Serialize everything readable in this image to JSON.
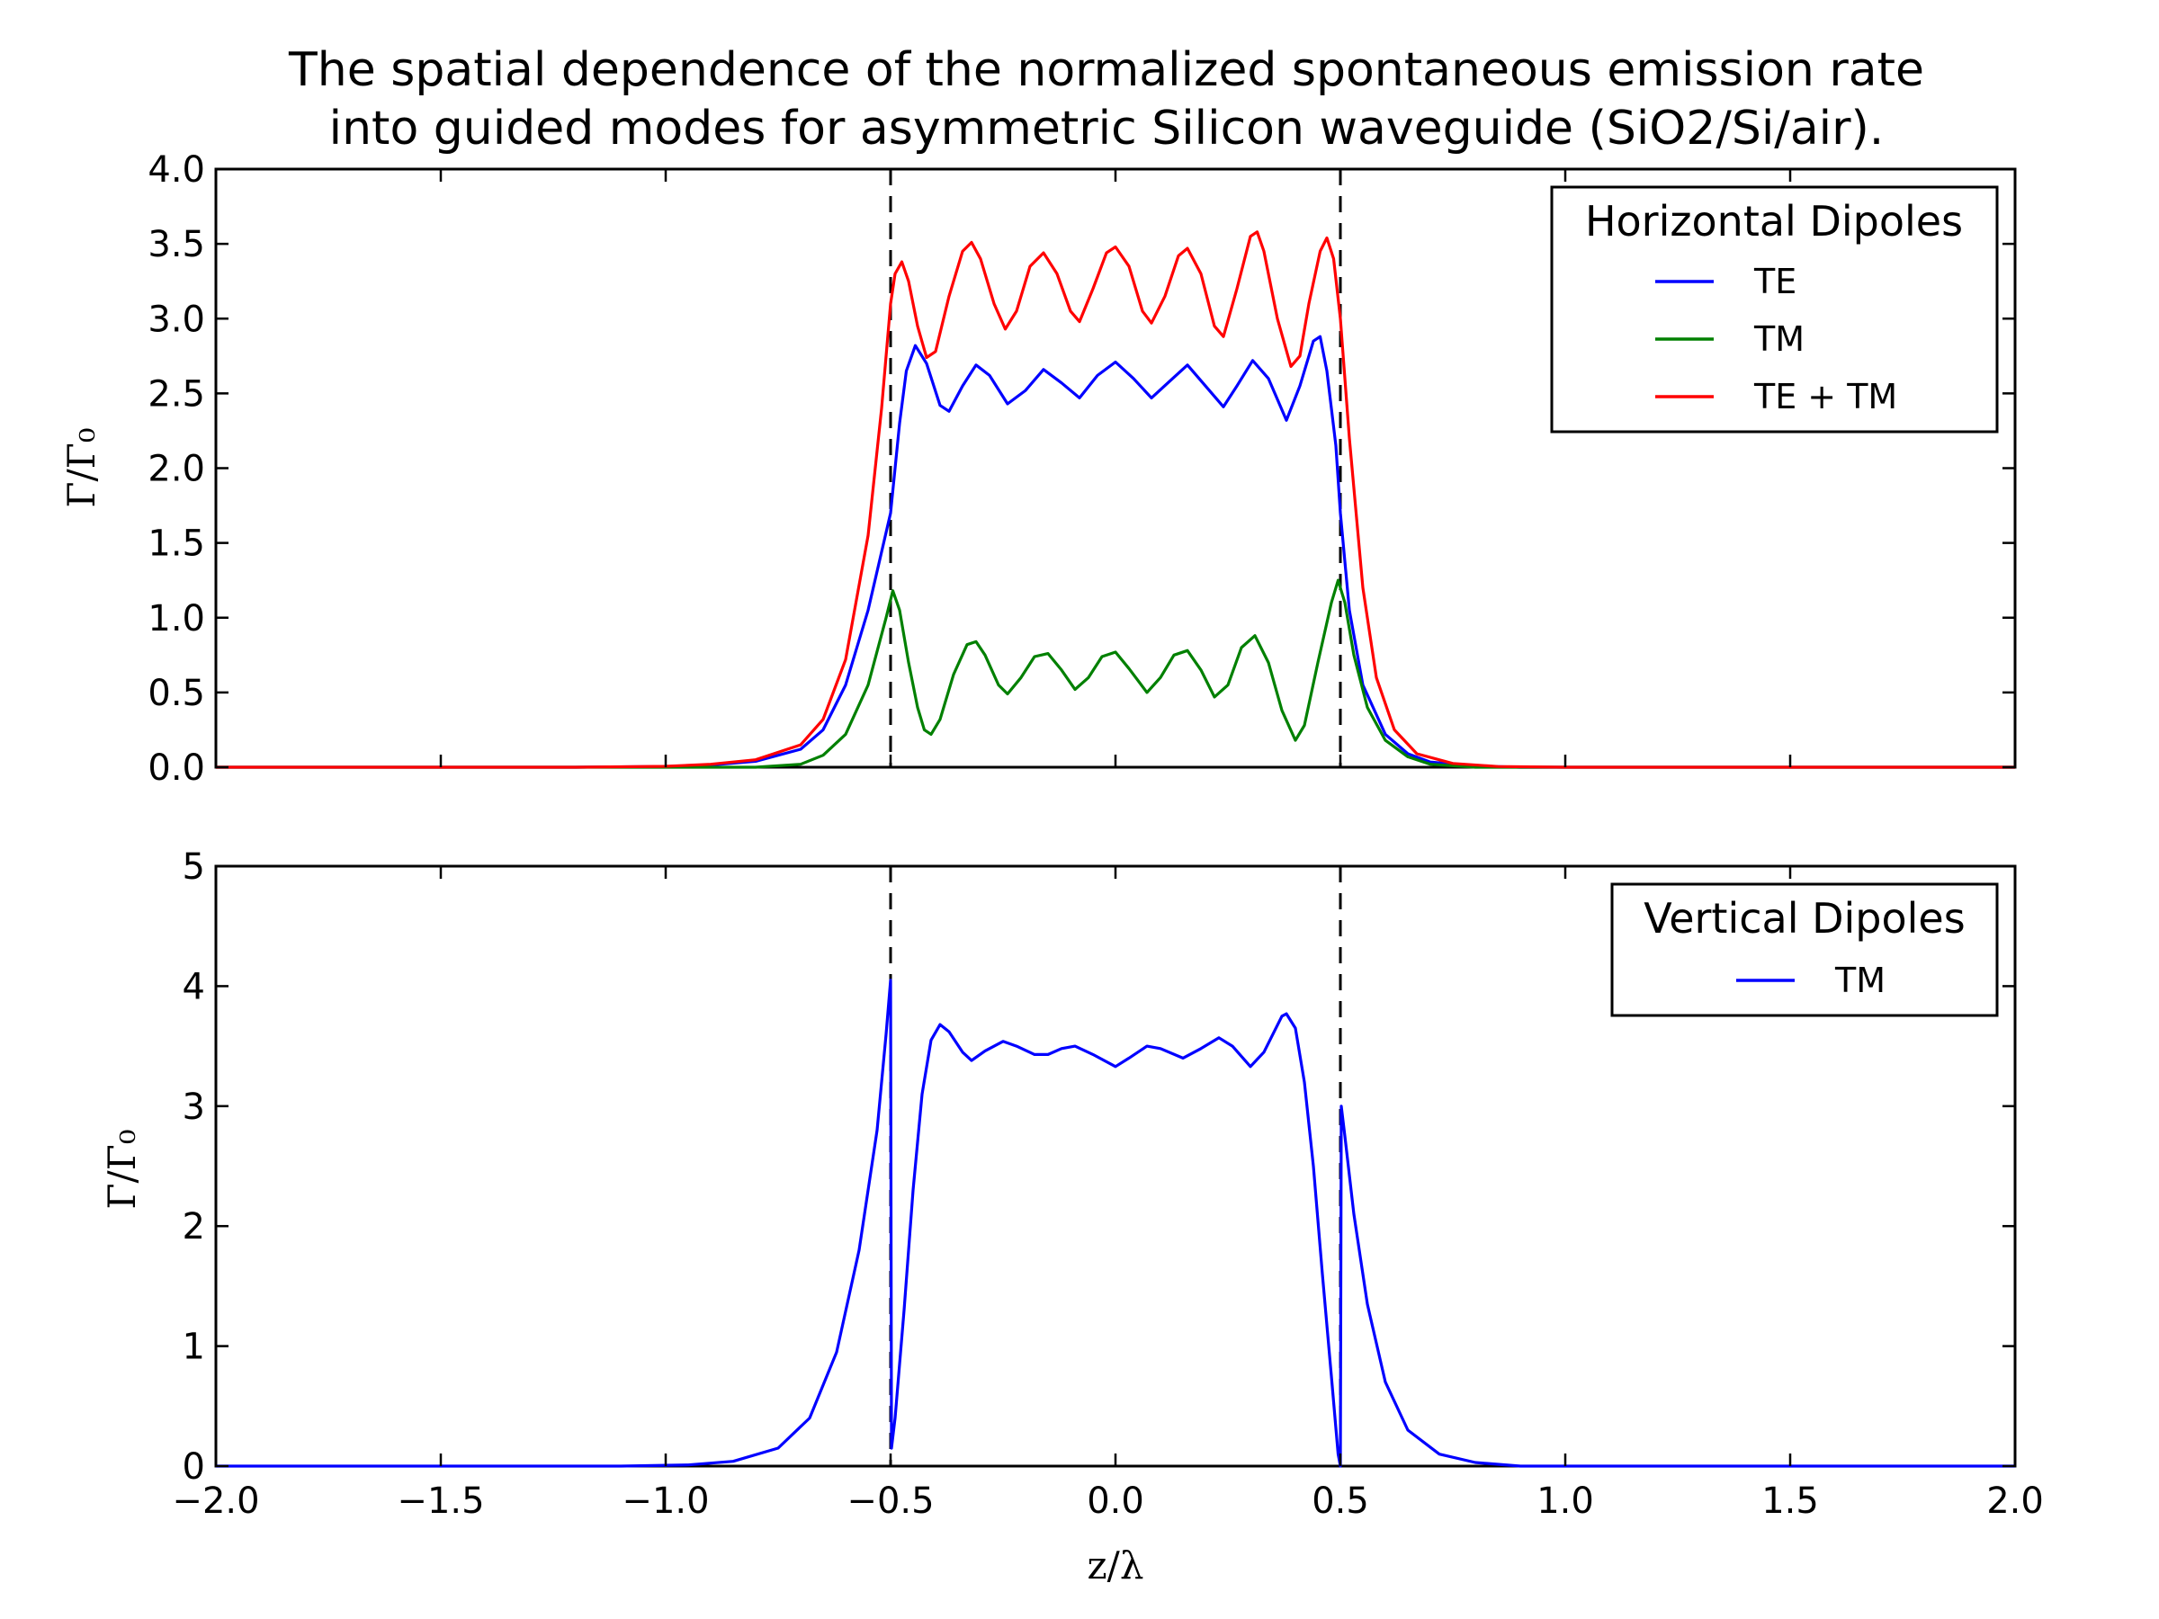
{
  "title_lines": [
    "The spatial dependence of the normalized spontaneous emission rate",
    "into guided modes for asymmetric Silicon waveguide (SiO2/Si/air)."
  ],
  "colors": {
    "TE": "#0000ff",
    "TM": "#008000",
    "TE_TM": "#ff0000",
    "vline": "#000000"
  },
  "chart_data": [
    {
      "type": "line",
      "panel": "top",
      "ylabel": "Γ/Γ₀",
      "xlim": [
        -2.0,
        2.0
      ],
      "ylim": [
        0.0,
        4.0
      ],
      "yticks": [
        "0.0",
        "0.5",
        "1.0",
        "1.5",
        "2.0",
        "2.5",
        "3.0",
        "3.5",
        "4.0"
      ],
      "grid": false,
      "legend": {
        "title": "Horizontal Dipoles",
        "position": "top-right",
        "entries": [
          "TE",
          "TM",
          "TE + TM"
        ]
      },
      "vertical_lines": [
        -0.5,
        0.5
      ],
      "series": [
        {
          "name": "TE",
          "color": "#0000ff",
          "points": [
            [
              -2.0,
              0.0
            ],
            [
              -1.2,
              0.0
            ],
            [
              -1.0,
              0.005
            ],
            [
              -0.9,
              0.015
            ],
            [
              -0.8,
              0.04
            ],
            [
              -0.7,
              0.12
            ],
            [
              -0.65,
              0.25
            ],
            [
              -0.6,
              0.55
            ],
            [
              -0.55,
              1.05
            ],
            [
              -0.5,
              1.7
            ],
            [
              -0.48,
              2.3
            ],
            [
              -0.465,
              2.65
            ],
            [
              -0.445,
              2.82
            ],
            [
              -0.42,
              2.7
            ],
            [
              -0.39,
              2.42
            ],
            [
              -0.37,
              2.38
            ],
            [
              -0.34,
              2.55
            ],
            [
              -0.31,
              2.69
            ],
            [
              -0.28,
              2.62
            ],
            [
              -0.24,
              2.43
            ],
            [
              -0.2,
              2.52
            ],
            [
              -0.16,
              2.66
            ],
            [
              -0.12,
              2.57
            ],
            [
              -0.08,
              2.47
            ],
            [
              -0.04,
              2.62
            ],
            [
              0.0,
              2.71
            ],
            [
              0.04,
              2.6
            ],
            [
              0.08,
              2.47
            ],
            [
              0.12,
              2.58
            ],
            [
              0.16,
              2.69
            ],
            [
              0.2,
              2.55
            ],
            [
              0.24,
              2.41
            ],
            [
              0.27,
              2.55
            ],
            [
              0.305,
              2.72
            ],
            [
              0.34,
              2.6
            ],
            [
              0.38,
              2.32
            ],
            [
              0.41,
              2.55
            ],
            [
              0.44,
              2.85
            ],
            [
              0.455,
              2.88
            ],
            [
              0.47,
              2.65
            ],
            [
              0.49,
              2.15
            ],
            [
              0.5,
              1.7
            ],
            [
              0.52,
              1.05
            ],
            [
              0.55,
              0.55
            ],
            [
              0.6,
              0.22
            ],
            [
              0.65,
              0.09
            ],
            [
              0.7,
              0.035
            ],
            [
              0.8,
              0.008
            ],
            [
              0.9,
              0.0
            ],
            [
              2.0,
              0.0
            ]
          ]
        },
        {
          "name": "TM",
          "color": "#008000",
          "points": [
            [
              -2.0,
              0.0
            ],
            [
              -0.8,
              0.0
            ],
            [
              -0.7,
              0.02
            ],
            [
              -0.65,
              0.08
            ],
            [
              -0.6,
              0.22
            ],
            [
              -0.55,
              0.55
            ],
            [
              -0.51,
              1.0
            ],
            [
              -0.495,
              1.18
            ],
            [
              -0.48,
              1.05
            ],
            [
              -0.46,
              0.7
            ],
            [
              -0.44,
              0.4
            ],
            [
              -0.425,
              0.25
            ],
            [
              -0.41,
              0.22
            ],
            [
              -0.39,
              0.32
            ],
            [
              -0.36,
              0.62
            ],
            [
              -0.33,
              0.82
            ],
            [
              -0.31,
              0.84
            ],
            [
              -0.29,
              0.75
            ],
            [
              -0.26,
              0.55
            ],
            [
              -0.24,
              0.49
            ],
            [
              -0.21,
              0.6
            ],
            [
              -0.18,
              0.74
            ],
            [
              -0.15,
              0.76
            ],
            [
              -0.12,
              0.65
            ],
            [
              -0.09,
              0.52
            ],
            [
              -0.06,
              0.6
            ],
            [
              -0.03,
              0.74
            ],
            [
              0.0,
              0.77
            ],
            [
              0.03,
              0.66
            ],
            [
              0.07,
              0.5
            ],
            [
              0.1,
              0.6
            ],
            [
              0.13,
              0.75
            ],
            [
              0.16,
              0.78
            ],
            [
              0.19,
              0.65
            ],
            [
              0.22,
              0.47
            ],
            [
              0.25,
              0.55
            ],
            [
              0.28,
              0.8
            ],
            [
              0.31,
              0.88
            ],
            [
              0.34,
              0.7
            ],
            [
              0.37,
              0.38
            ],
            [
              0.4,
              0.18
            ],
            [
              0.42,
              0.28
            ],
            [
              0.45,
              0.7
            ],
            [
              0.48,
              1.1
            ],
            [
              0.495,
              1.25
            ],
            [
              0.51,
              1.1
            ],
            [
              0.53,
              0.75
            ],
            [
              0.56,
              0.4
            ],
            [
              0.6,
              0.18
            ],
            [
              0.65,
              0.07
            ],
            [
              0.7,
              0.02
            ],
            [
              0.8,
              0.0
            ],
            [
              2.0,
              0.0
            ]
          ]
        },
        {
          "name": "TE + TM",
          "color": "#ff0000",
          "points": [
            [
              -2.0,
              0.0
            ],
            [
              -1.2,
              0.0
            ],
            [
              -1.0,
              0.006
            ],
            [
              -0.9,
              0.02
            ],
            [
              -0.8,
              0.05
            ],
            [
              -0.7,
              0.15
            ],
            [
              -0.65,
              0.32
            ],
            [
              -0.6,
              0.72
            ],
            [
              -0.55,
              1.55
            ],
            [
              -0.52,
              2.4
            ],
            [
              -0.5,
              3.1
            ],
            [
              -0.49,
              3.3
            ],
            [
              -0.475,
              3.38
            ],
            [
              -0.46,
              3.25
            ],
            [
              -0.44,
              2.95
            ],
            [
              -0.42,
              2.74
            ],
            [
              -0.4,
              2.78
            ],
            [
              -0.37,
              3.15
            ],
            [
              -0.34,
              3.45
            ],
            [
              -0.32,
              3.51
            ],
            [
              -0.3,
              3.4
            ],
            [
              -0.27,
              3.1
            ],
            [
              -0.245,
              2.93
            ],
            [
              -0.22,
              3.05
            ],
            [
              -0.19,
              3.35
            ],
            [
              -0.16,
              3.44
            ],
            [
              -0.13,
              3.3
            ],
            [
              -0.1,
              3.05
            ],
            [
              -0.08,
              2.98
            ],
            [
              -0.05,
              3.2
            ],
            [
              -0.02,
              3.44
            ],
            [
              0.0,
              3.48
            ],
            [
              0.03,
              3.35
            ],
            [
              0.06,
              3.05
            ],
            [
              0.08,
              2.97
            ],
            [
              0.11,
              3.15
            ],
            [
              0.14,
              3.42
            ],
            [
              0.16,
              3.47
            ],
            [
              0.19,
              3.3
            ],
            [
              0.22,
              2.95
            ],
            [
              0.24,
              2.88
            ],
            [
              0.27,
              3.2
            ],
            [
              0.3,
              3.55
            ],
            [
              0.315,
              3.58
            ],
            [
              0.33,
              3.45
            ],
            [
              0.36,
              3.0
            ],
            [
              0.39,
              2.68
            ],
            [
              0.41,
              2.75
            ],
            [
              0.43,
              3.1
            ],
            [
              0.455,
              3.45
            ],
            [
              0.47,
              3.54
            ],
            [
              0.485,
              3.4
            ],
            [
              0.5,
              3.0
            ],
            [
              0.52,
              2.2
            ],
            [
              0.55,
              1.2
            ],
            [
              0.58,
              0.6
            ],
            [
              0.62,
              0.25
            ],
            [
              0.67,
              0.09
            ],
            [
              0.75,
              0.025
            ],
            [
              0.85,
              0.005
            ],
            [
              1.0,
              0.0
            ],
            [
              2.0,
              0.0
            ]
          ]
        }
      ]
    },
    {
      "type": "line",
      "panel": "bottom",
      "xlabel": "z/λ",
      "ylabel": "Γ/Γ₀",
      "xlim": [
        -2.0,
        2.0
      ],
      "ylim": [
        0,
        5
      ],
      "xticks": [
        "−2.0",
        "−1.5",
        "−1.0",
        "−0.5",
        "0.0",
        "0.5",
        "1.0",
        "1.5",
        "2.0"
      ],
      "yticks": [
        "0",
        "1",
        "2",
        "3",
        "4",
        "5"
      ],
      "grid": false,
      "legend": {
        "title": "Vertical Dipoles",
        "position": "top-right",
        "entries": [
          "TM"
        ]
      },
      "vertical_lines": [
        -0.5,
        0.5
      ],
      "series": [
        {
          "name": "TM",
          "color": "#0000ff",
          "points": [
            [
              -2.0,
              0.0
            ],
            [
              -1.1,
              0.0
            ],
            [
              -0.95,
              0.01
            ],
            [
              -0.85,
              0.04
            ],
            [
              -0.75,
              0.15
            ],
            [
              -0.68,
              0.4
            ],
            [
              -0.62,
              0.95
            ],
            [
              -0.57,
              1.8
            ],
            [
              -0.53,
              2.8
            ],
            [
              -0.51,
              3.6
            ],
            [
              -0.5,
              4.05
            ],
            [
              -0.498,
              0.15
            ],
            [
              -0.49,
              0.4
            ],
            [
              -0.47,
              1.3
            ],
            [
              -0.45,
              2.3
            ],
            [
              -0.43,
              3.1
            ],
            [
              -0.41,
              3.55
            ],
            [
              -0.39,
              3.68
            ],
            [
              -0.37,
              3.62
            ],
            [
              -0.34,
              3.45
            ],
            [
              -0.32,
              3.38
            ],
            [
              -0.29,
              3.46
            ],
            [
              -0.25,
              3.54
            ],
            [
              -0.22,
              3.5
            ],
            [
              -0.18,
              3.43
            ],
            [
              -0.15,
              3.43
            ],
            [
              -0.12,
              3.48
            ],
            [
              -0.09,
              3.5
            ],
            [
              -0.05,
              3.43
            ],
            [
              0.0,
              3.33
            ],
            [
              0.03,
              3.4
            ],
            [
              0.07,
              3.5
            ],
            [
              0.1,
              3.48
            ],
            [
              0.15,
              3.4
            ],
            [
              0.19,
              3.48
            ],
            [
              0.23,
              3.57
            ],
            [
              0.26,
              3.5
            ],
            [
              0.3,
              3.33
            ],
            [
              0.33,
              3.45
            ],
            [
              0.37,
              3.75
            ],
            [
              0.38,
              3.77
            ],
            [
              0.4,
              3.65
            ],
            [
              0.42,
              3.2
            ],
            [
              0.44,
              2.5
            ],
            [
              0.46,
              1.6
            ],
            [
              0.48,
              0.75
            ],
            [
              0.495,
              0.1
            ],
            [
              0.5,
              0.0
            ],
            [
              0.502,
              3.0
            ],
            [
              0.51,
              2.75
            ],
            [
              0.53,
              2.1
            ],
            [
              0.56,
              1.35
            ],
            [
              0.6,
              0.7
            ],
            [
              0.65,
              0.3
            ],
            [
              0.72,
              0.1
            ],
            [
              0.8,
              0.03
            ],
            [
              0.9,
              0.0
            ],
            [
              2.0,
              0.0
            ]
          ]
        }
      ]
    }
  ]
}
